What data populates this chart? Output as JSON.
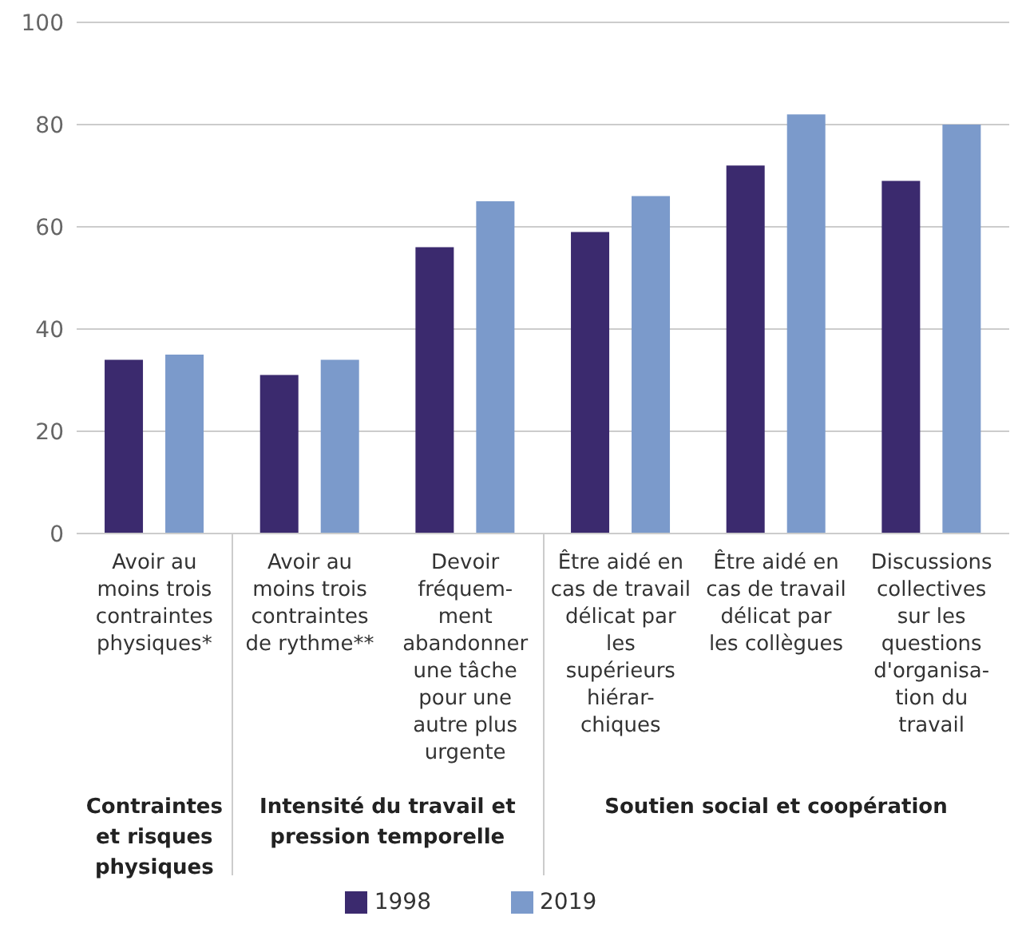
{
  "chart_data": {
    "type": "bar",
    "categories": [
      "Avoir au\nmoins trois\ncontraintes\nphysiques*",
      "Avoir au\nmoins trois\ncontraintes\nde rythme**",
      "Devoir\nfréquem-\nment\nabandonner\nune tâche\npour une\nautre plus\nurgente",
      "Être aidé en\ncas de travail\ndélicat par\nles\nsupérieurs\nhiérar-\nchiques",
      "Être aidé en\ncas de travail\ndélicat par\nles collègues",
      "Discussions\ncollectives\nsur les\nquestions\nd'organisa-\ntion du\ntravail"
    ],
    "series": [
      {
        "name": "1998",
        "color": "#3b2a6e",
        "values": [
          34,
          31,
          56,
          59,
          72,
          69
        ]
      },
      {
        "name": "2019",
        "color": "#7b9acb",
        "values": [
          35,
          34,
          65,
          66,
          82,
          80
        ]
      }
    ],
    "annotations": [
      "Contraintes\net risques\nphysiques",
      "Intensité du travail et\npression temporelle",
      "Soutien social et coopération"
    ],
    "ylim": [
      0,
      100
    ],
    "yticks": [
      0,
      20,
      40,
      60,
      80,
      100
    ],
    "grid": "y",
    "legend": "bottom"
  }
}
